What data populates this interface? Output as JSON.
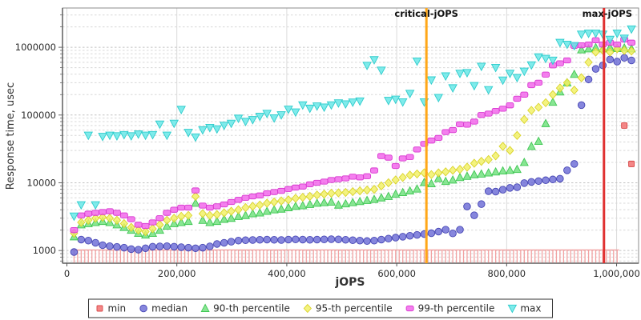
{
  "chart_data": {
    "type": "scatter",
    "title": "",
    "xlabel": "jOPS",
    "ylabel": "Response time, usec",
    "y_scale": "log",
    "grid": true,
    "legend_position": "bottom",
    "x_range": [
      -8000,
      1040000
    ],
    "y_range": [
      650,
      3800000
    ],
    "x_ticks": [
      {
        "value": 0,
        "label": "0"
      },
      {
        "value": 200000,
        "label": "200,000"
      },
      {
        "value": 400000,
        "label": "400,000"
      },
      {
        "value": 600000,
        "label": "600,000"
      },
      {
        "value": 800000,
        "label": "800,000"
      },
      {
        "value": 1000000,
        "label": "1,000,000"
      }
    ],
    "y_ticks": [
      {
        "value": 1000,
        "label": "1000"
      },
      {
        "value": 10000,
        "label": "10000"
      },
      {
        "value": 100000,
        "label": "100000"
      },
      {
        "value": 1000000,
        "label": "1000000"
      }
    ],
    "annotations": [
      {
        "label": "critical-jOPS",
        "jops": 654000,
        "color": "#ffa718"
      },
      {
        "label": "max-jOPS",
        "jops": 977000,
        "color": "#e03030"
      }
    ],
    "jops": [
      13000,
      26000,
      39000,
      52000,
      65000,
      78000,
      91000,
      104000,
      117000,
      130000,
      143000,
      156000,
      169000,
      182000,
      195000,
      208000,
      221000,
      234000,
      247000,
      260000,
      273000,
      286000,
      299000,
      312000,
      325000,
      338000,
      351000,
      364000,
      377000,
      390000,
      403000,
      416000,
      429000,
      442000,
      455000,
      468000,
      481000,
      494000,
      507000,
      520000,
      533000,
      546000,
      559000,
      572000,
      585000,
      598000,
      611000,
      624000,
      637000,
      650000,
      663000,
      676000,
      689000,
      702000,
      715000,
      728000,
      741000,
      754000,
      767000,
      780000,
      793000,
      806000,
      819000,
      832000,
      845000,
      858000,
      871000,
      884000,
      897000,
      910000,
      923000,
      936000,
      949000,
      962000,
      975000,
      988000,
      1001000,
      1014000,
      1027000
    ],
    "series": [
      {
        "name": "min",
        "marker": "square",
        "style": "impulse",
        "color": "#f26d6d",
        "edge": "#d84848",
        "stem_color": "#f2a2a2",
        "values": [
          1020,
          1020,
          1020,
          1020,
          1020,
          1020,
          1020,
          1020,
          1020,
          1020,
          1020,
          1020,
          1020,
          1020,
          1020,
          1020,
          1020,
          1020,
          1020,
          1020,
          1020,
          1020,
          1020,
          1020,
          1020,
          1020,
          1020,
          1020,
          1020,
          1020,
          1020,
          1020,
          1020,
          1020,
          1020,
          1020,
          1020,
          1020,
          1020,
          1020,
          1020,
          1020,
          1020,
          1020,
          1020,
          1020,
          1020,
          1020,
          1020,
          1020,
          1020,
          1020,
          1020,
          1020,
          1020,
          1020,
          1020,
          1020,
          1020,
          1020,
          1020,
          1020,
          1020,
          1020,
          1020,
          1020,
          1020,
          1020,
          1020,
          1020,
          1020,
          1020,
          1020,
          1020,
          1020,
          1020,
          1020,
          70000,
          19000
        ]
      },
      {
        "name": "median",
        "marker": "circle",
        "color": "#6b6bd6",
        "edge": "#4646b4",
        "values": [
          950,
          1450,
          1400,
          1300,
          1200,
          1160,
          1130,
          1100,
          1050,
          1030,
          1080,
          1140,
          1150,
          1160,
          1140,
          1120,
          1100,
          1080,
          1100,
          1150,
          1250,
          1300,
          1350,
          1400,
          1420,
          1430,
          1440,
          1450,
          1440,
          1430,
          1450,
          1460,
          1450,
          1440,
          1450,
          1460,
          1470,
          1460,
          1440,
          1420,
          1400,
          1380,
          1400,
          1450,
          1500,
          1550,
          1600,
          1650,
          1700,
          1750,
          1800,
          1900,
          2030,
          1790,
          2030,
          4470,
          3310,
          4840,
          7500,
          7400,
          7900,
          8400,
          8600,
          9900,
          10300,
          10600,
          10900,
          11200,
          11500,
          15300,
          19000,
          140000,
          335000,
          480000,
          540000,
          660000,
          615000,
          700000,
          640000
        ]
      },
      {
        "name": "90-th percentile",
        "marker": "triangle",
        "color": "#6ee07b",
        "edge": "#3fc653",
        "values": [
          1600,
          2400,
          2500,
          2600,
          2700,
          2600,
          2400,
          2200,
          2000,
          1800,
          1700,
          1800,
          2000,
          2300,
          2500,
          2600,
          2700,
          5000,
          2800,
          2600,
          2700,
          2900,
          3000,
          3200,
          3300,
          3500,
          3600,
          3800,
          4000,
          4100,
          4300,
          4500,
          4600,
          4800,
          5000,
          5100,
          5200,
          4700,
          4900,
          5100,
          5300,
          5500,
          5700,
          6000,
          6300,
          6800,
          7200,
          7600,
          8100,
          10100,
          9700,
          11600,
          10500,
          11000,
          12000,
          12500,
          13200,
          13500,
          14000,
          14500,
          15000,
          15300,
          15800,
          20000,
          34500,
          41000,
          75000,
          155000,
          220000,
          300000,
          400000,
          920000,
          950000,
          990000,
          950000,
          990000,
          960000,
          980000,
          950000
        ]
      },
      {
        "name": "95-th percentile",
        "marker": "diamond",
        "color": "#f2f063",
        "edge": "#d9d32a",
        "values": [
          1800,
          2600,
          2800,
          3000,
          3100,
          3000,
          2800,
          2500,
          2200,
          2000,
          1900,
          2100,
          2400,
          2800,
          3000,
          3200,
          3300,
          6300,
          3500,
          3300,
          3400,
          3600,
          3800,
          4000,
          4300,
          4500,
          4700,
          5000,
          5200,
          5400,
          5600,
          5900,
          6100,
          6300,
          6600,
          6800,
          7000,
          7100,
          7200,
          7400,
          7600,
          7800,
          8000,
          9000,
          10000,
          11000,
          12000,
          13000,
          13500,
          14000,
          13200,
          14000,
          14500,
          15300,
          15800,
          17000,
          19400,
          20700,
          22000,
          25000,
          34500,
          30000,
          50000,
          86000,
          117000,
          130000,
          152000,
          200000,
          250000,
          300000,
          233000,
          355000,
          600000,
          850000,
          900000,
          850000,
          950000,
          900000,
          880000
        ]
      },
      {
        "name": "99-th percentile",
        "marker": "hsquare",
        "color": "#f263ea",
        "edge": "#d837cf",
        "values": [
          2000,
          3300,
          3500,
          3600,
          3700,
          3800,
          3600,
          3300,
          2900,
          2400,
          2300,
          2600,
          3000,
          3600,
          4000,
          4300,
          4300,
          7700,
          4600,
          4300,
          4500,
          4800,
          5200,
          5600,
          6000,
          6300,
          6500,
          7000,
          7300,
          7600,
          8100,
          8500,
          8800,
          9500,
          10000,
          10400,
          11000,
          11300,
          11600,
          12300,
          12000,
          12500,
          15200,
          24800,
          23500,
          17700,
          22900,
          24000,
          31000,
          37500,
          42000,
          46000,
          56000,
          60000,
          73000,
          72000,
          80000,
          100000,
          105000,
          115000,
          124000,
          139000,
          174000,
          200000,
          276000,
          300000,
          395000,
          540000,
          580000,
          640000,
          1050000,
          1070000,
          1100000,
          1270000,
          1100000,
          1170000,
          1100000,
          1300000,
          1170000
        ]
      },
      {
        "name": "max",
        "marker": "triangle-down",
        "color": "#63e6e6",
        "edge": "#2ecccc",
        "values": [
          3200,
          4700,
          50000,
          4700,
          48000,
          50000,
          49000,
          51000,
          49000,
          52000,
          50000,
          51000,
          73000,
          50000,
          75000,
          120000,
          55000,
          47000,
          60000,
          65000,
          62000,
          70000,
          75000,
          89000,
          80000,
          85000,
          95000,
          105000,
          90000,
          100000,
          121000,
          110000,
          140000,
          125000,
          135000,
          130000,
          140000,
          150000,
          145000,
          154000,
          160000,
          537000,
          650000,
          455000,
          163000,
          170000,
          155000,
          207000,
          620000,
          155000,
          327000,
          180000,
          375000,
          250000,
          410000,
          420000,
          270000,
          520000,
          235000,
          500000,
          325000,
          410000,
          355000,
          440000,
          545000,
          715000,
          680000,
          640000,
          1170000,
          1100000,
          1050000,
          1550000,
          1600000,
          1600000,
          1550000,
          1300000,
          1600000,
          1350000,
          1850000
        ]
      }
    ],
    "legend_items": [
      "min",
      "median",
      "90-th percentile",
      "95-th percentile",
      "99-th percentile",
      "max"
    ]
  }
}
